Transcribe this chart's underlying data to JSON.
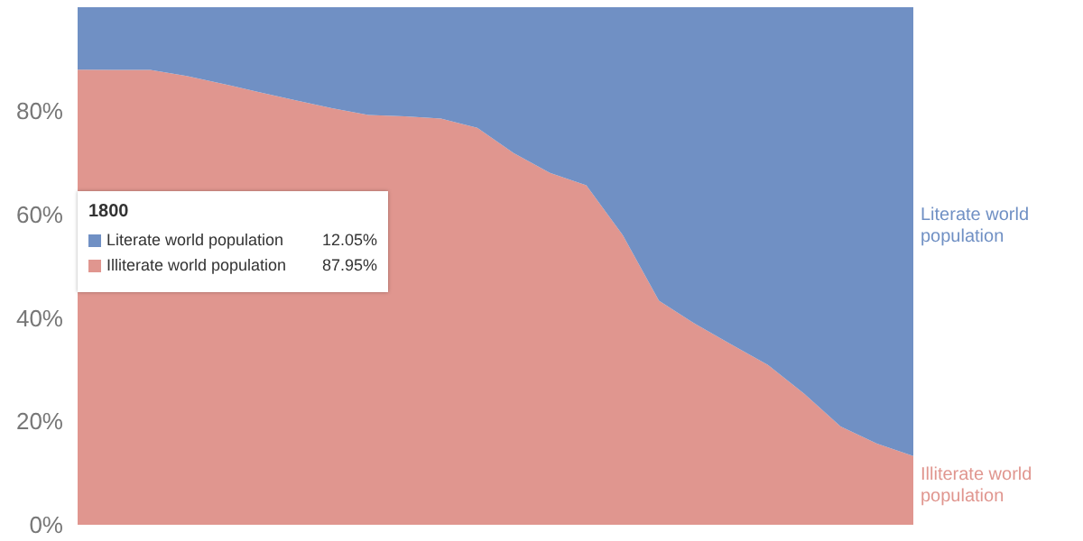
{
  "chart_data": {
    "type": "area",
    "stacked": true,
    "categories": [
      null,
      null,
      null,
      null,
      null,
      null,
      null,
      null,
      null,
      null,
      null,
      null,
      null,
      null,
      null,
      null,
      null,
      null,
      null,
      null,
      null,
      null,
      null,
      null
    ],
    "series": [
      {
        "name": "Illiterate world population",
        "color": "#e0968f",
        "values": [
          87.95,
          87.9,
          87.9,
          86.7,
          85.2,
          83.6,
          82.0,
          80.5,
          79.2,
          78.9,
          78.5,
          76.7,
          71.8,
          68.0,
          65.6,
          56.0,
          43.3,
          38.8,
          34.8,
          30.9,
          25.3,
          19.0,
          15.7,
          13.3
        ]
      },
      {
        "name": "Literate world population",
        "color": "#7090c4",
        "values": [
          12.05,
          12.1,
          12.1,
          13.3,
          14.8,
          16.4,
          18.0,
          19.5,
          20.8,
          21.1,
          21.5,
          23.3,
          28.2,
          32.0,
          34.4,
          44.0,
          56.7,
          61.2,
          65.2,
          69.1,
          74.7,
          81.0,
          84.3,
          86.7
        ]
      }
    ],
    "ylim": [
      0,
      100
    ],
    "yticks": [
      {
        "value": 0,
        "label": "0%"
      },
      {
        "value": 20,
        "label": "20%"
      },
      {
        "value": 40,
        "label": "40%"
      },
      {
        "value": 60,
        "label": "60%"
      },
      {
        "value": 80,
        "label": "80%"
      }
    ],
    "tick_labels": "y",
    "grid": false,
    "legend": "right",
    "annotations": [
      "1800",
      "Literate world population",
      "12.05%",
      "Illiterate world population",
      "87.95%"
    ]
  }
}
